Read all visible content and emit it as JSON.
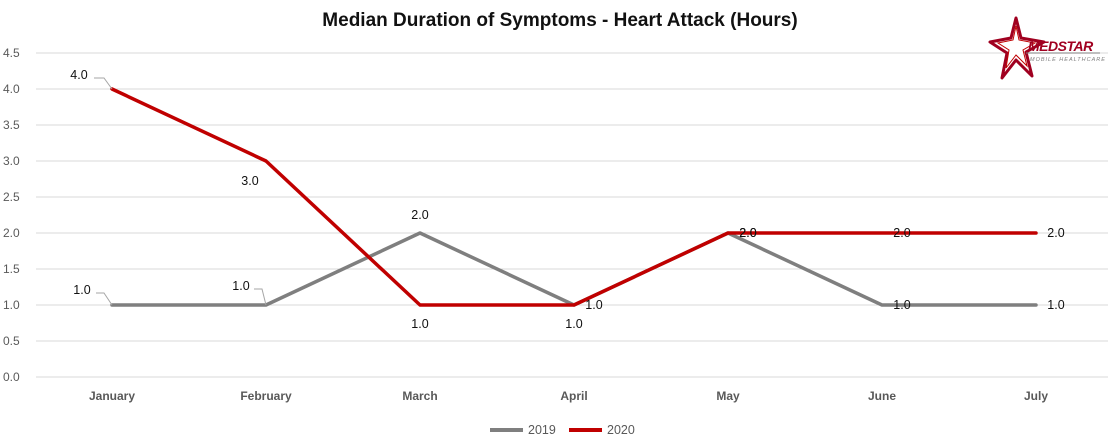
{
  "chart_data": {
    "type": "line",
    "title": "Median Duration of Symptoms - Heart Attack (Hours)",
    "xlabel": "",
    "ylabel": "",
    "categories": [
      "January",
      "February",
      "March",
      "April",
      "May",
      "June",
      "July"
    ],
    "ylim": [
      0,
      4.5
    ],
    "yticks": [
      "0.0",
      "0.5",
      "1.0",
      "1.5",
      "2.0",
      "2.5",
      "3.0",
      "3.5",
      "4.0",
      "4.5"
    ],
    "grid": "horizontal",
    "legend_position": "bottom",
    "series": [
      {
        "name": "2019",
        "color": "#7f7f7f",
        "values": [
          1.0,
          1.0,
          2.0,
          1.0,
          2.0,
          1.0,
          1.0
        ]
      },
      {
        "name": "2020",
        "color": "#c00000",
        "values": [
          4.0,
          3.0,
          1.0,
          1.0,
          2.0,
          2.0,
          2.0
        ]
      }
    ]
  },
  "logo": {
    "text": "MEDSTAR",
    "subtitle": "MOBILE HEALTHCARE"
  }
}
